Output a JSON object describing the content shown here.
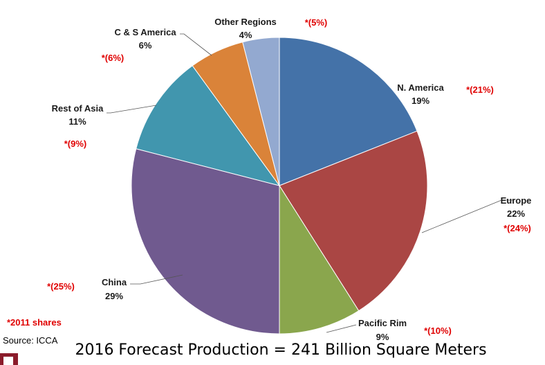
{
  "chart_data": {
    "type": "pie",
    "title": "",
    "caption": "2016 Forecast Production = 241 Billion Square Meters",
    "slices": [
      {
        "label": "N. America",
        "value": 19,
        "pct_label": "19%",
        "share_2011": "*(21%)",
        "color": "#4472a8"
      },
      {
        "label": "Europe",
        "value": 22,
        "pct_label": "22%",
        "share_2011": "*(24%)",
        "color": "#aa4644"
      },
      {
        "label": "Pacific Rim",
        "value": 9,
        "pct_label": "9%",
        "share_2011": "*(10%)",
        "color": "#8aa64d"
      },
      {
        "label": "China",
        "value": 29,
        "pct_label": "29%",
        "share_2011": "*(25%)",
        "color": "#705a8f"
      },
      {
        "label": "Rest of Asia",
        "value": 11,
        "pct_label": "11%",
        "share_2011": "*(9%)",
        "color": "#4196ae"
      },
      {
        "label": "C & S America",
        "value": 6,
        "pct_label": "6%",
        "share_2011": "*(6%)",
        "color": "#da8339"
      },
      {
        "label": "Other Regions",
        "value": 4,
        "pct_label": "4%",
        "share_2011": "*(5%)",
        "color": "#93a9d0"
      }
    ],
    "footnote": "*2011 shares",
    "source": "Source: ICCA"
  },
  "colors": {
    "annotation_red": "#e00000",
    "brand_mark": "#8b1c2b"
  }
}
